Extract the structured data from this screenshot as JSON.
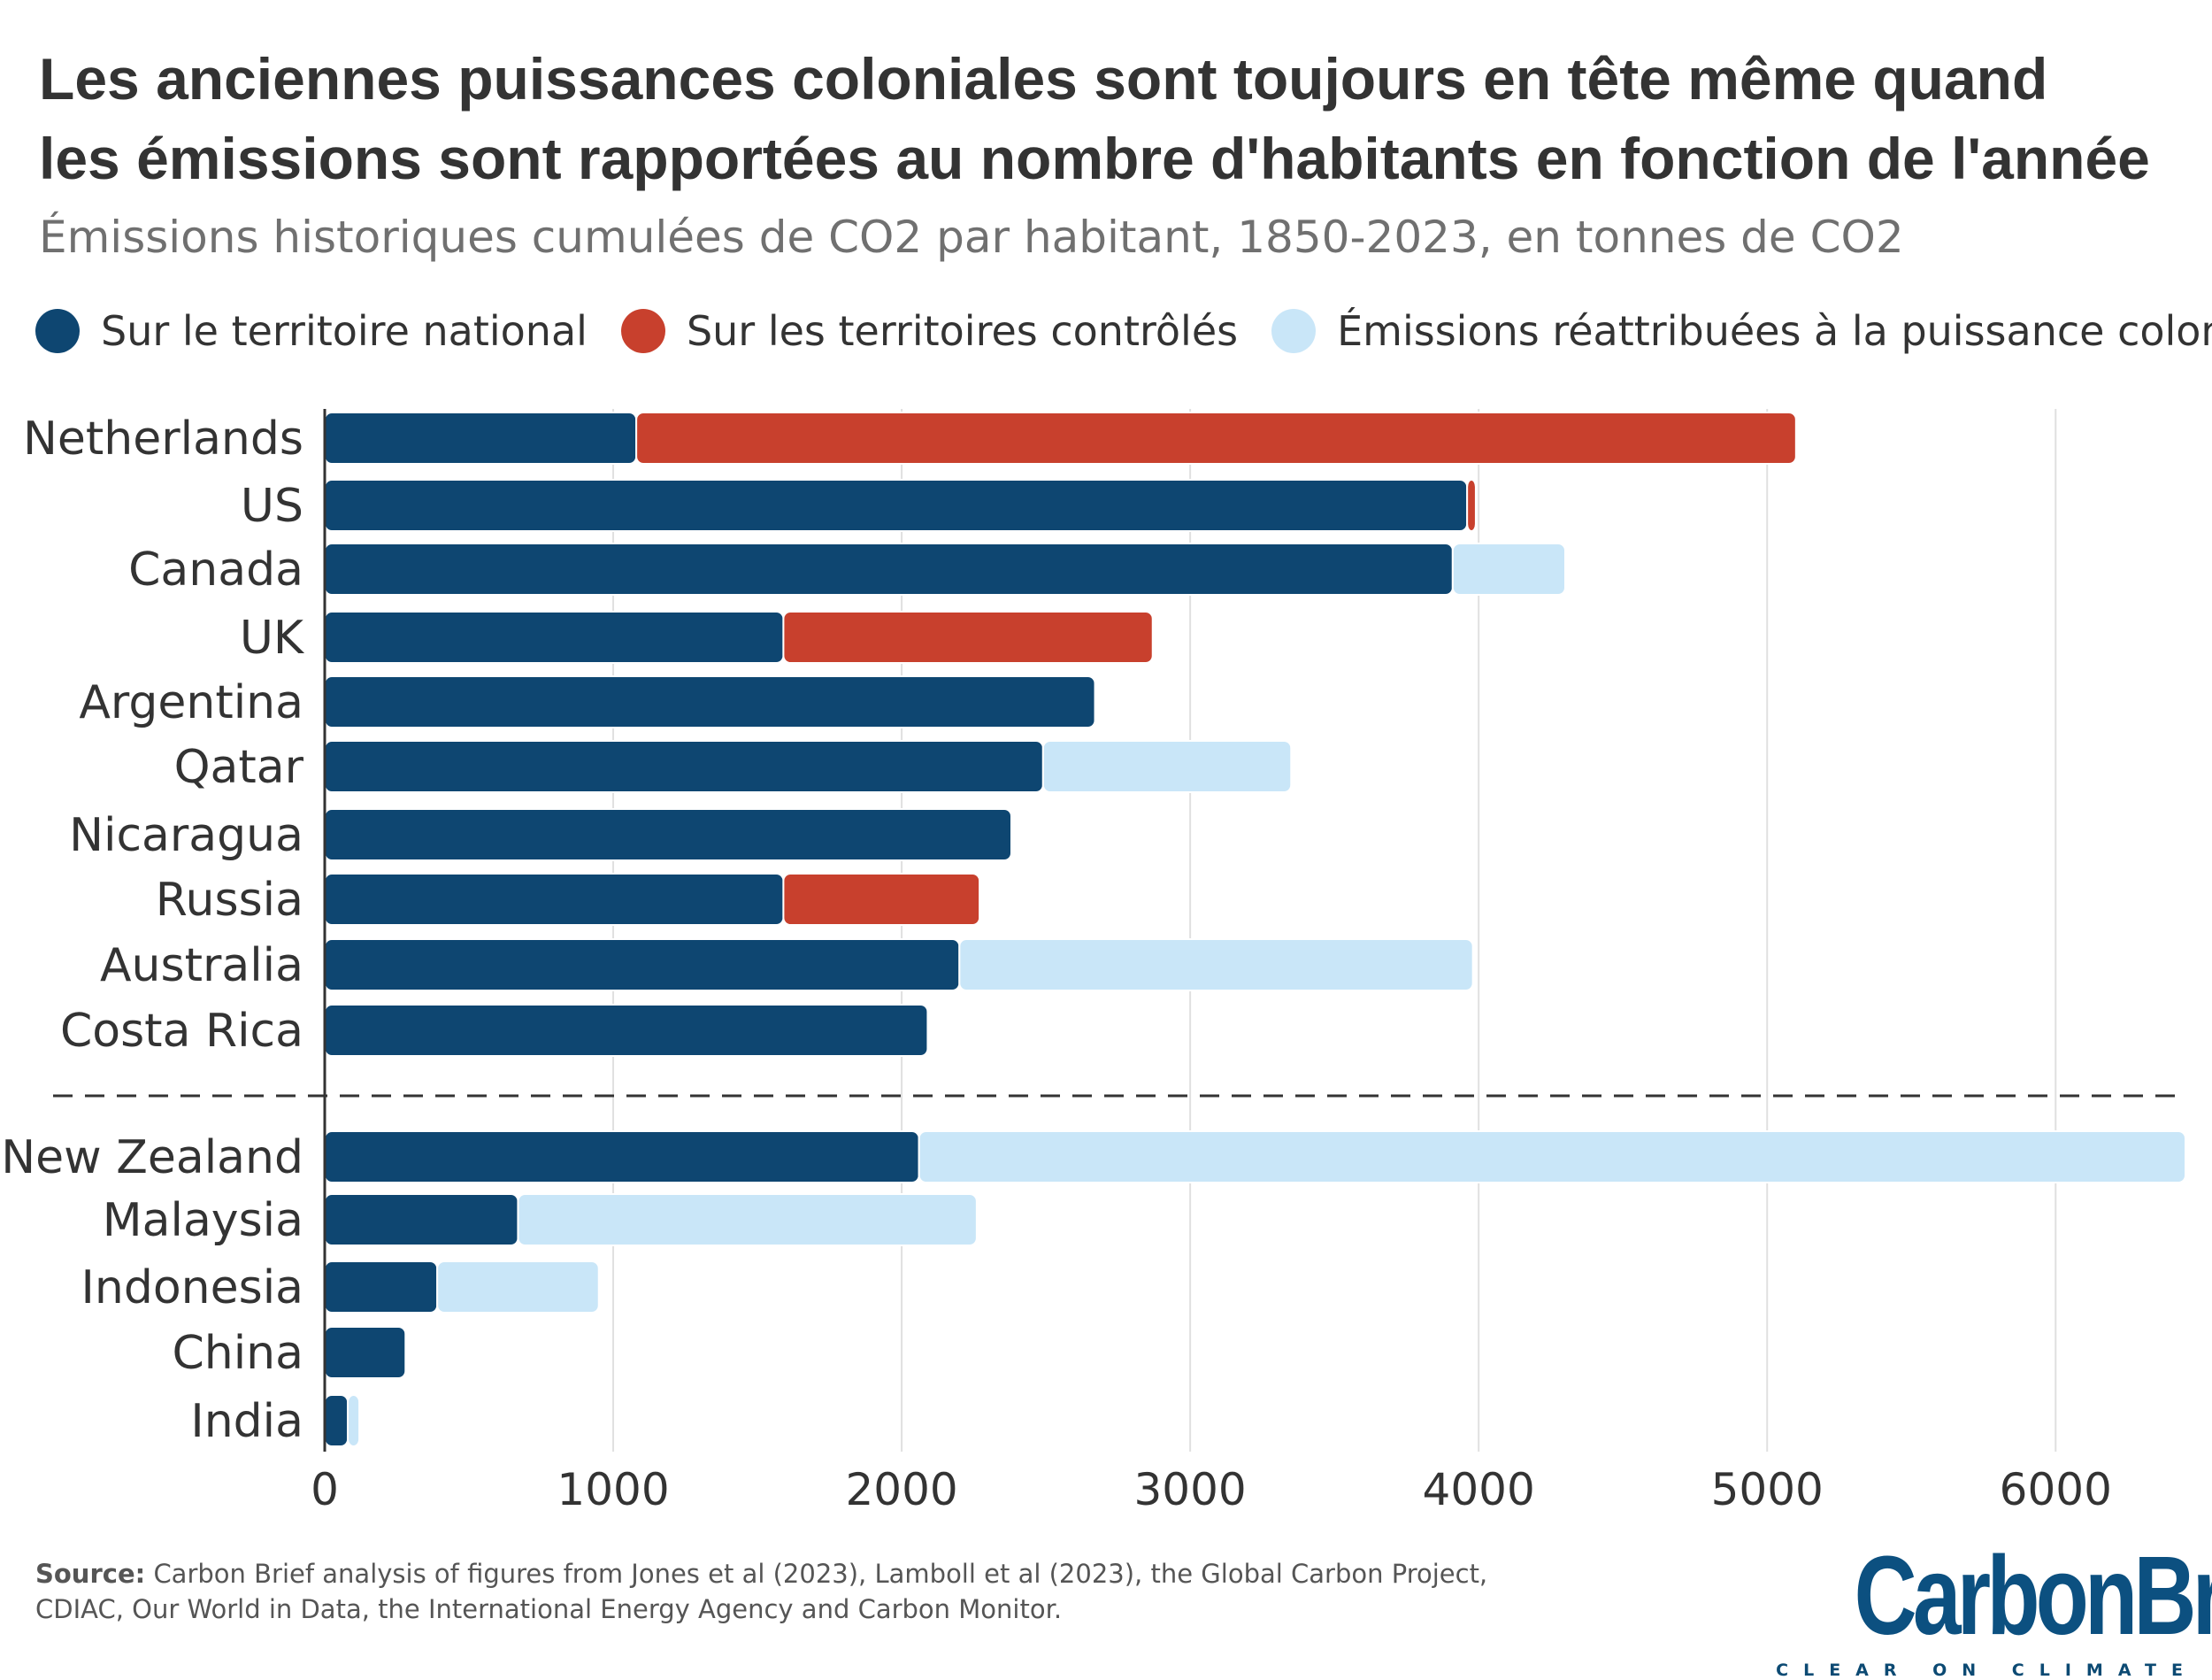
{
  "title": {
    "line1": "Les anciennes puissances coloniales sont toujours en tête même quand",
    "line2": "les émissions sont rapportées au nombre d'habitants en fonction de l'année"
  },
  "subtitle": "Émissions historiques cumulées de CO2 par habitant, 1850-2023, en tonnes de CO2",
  "legend": [
    {
      "label": "Sur le territoire national",
      "color": "#0e4671"
    },
    {
      "label": "Sur les territoires contrôlés",
      "color": "#c8402d"
    },
    {
      "label": "Émissions réattribuées à la puissance coloniale",
      "color": "#c9e6f8"
    }
  ],
  "chart_data": {
    "type": "bar",
    "orientation": "horizontal",
    "stacked": true,
    "xlim": [
      0,
      6450
    ],
    "xticks": [
      0,
      1000,
      2000,
      3000,
      4000,
      5000,
      6000
    ],
    "grid": true,
    "legend_position": "top",
    "categories": [
      "Netherlands",
      "US",
      "Canada",
      "UK",
      "Argentina",
      "Qatar",
      "Nicaragua",
      "Russia",
      "Australia",
      "Costa Rica",
      "New Zealand",
      "Malaysia",
      "Indonesia",
      "China",
      "India"
    ],
    "group_separator_after": "Costa Rica",
    "series": [
      {
        "name": "Sur le territoire national",
        "color": "#0e4671",
        "values": [
          1080,
          3960,
          3910,
          1590,
          2670,
          2490,
          2380,
          1590,
          2200,
          2090,
          2060,
          670,
          390,
          280,
          80
        ]
      },
      {
        "name": "Sur les territoires contrôlés",
        "color": "#c8402d",
        "values": [
          4020,
          30,
          0,
          1280,
          0,
          0,
          0,
          680,
          0,
          0,
          0,
          0,
          0,
          0,
          0
        ]
      },
      {
        "name": "Émissions réattribuées à la puissance coloniale",
        "color": "#c9e6f8",
        "values": [
          0,
          0,
          390,
          0,
          0,
          860,
          0,
          0,
          1780,
          0,
          4390,
          1590,
          560,
          0,
          40
        ]
      }
    ]
  },
  "source": {
    "label": "Source:",
    "text": "Carbon Brief analysis of figures from Jones et al (2023), Lamboll et al (2023), the Global Carbon Project, CDIAC, Our World in Data, the International Energy Agency and Carbon Monitor."
  },
  "logo": {
    "text": "CarbonBrief",
    "tagline": "CLEAR ON CLIMATE"
  }
}
